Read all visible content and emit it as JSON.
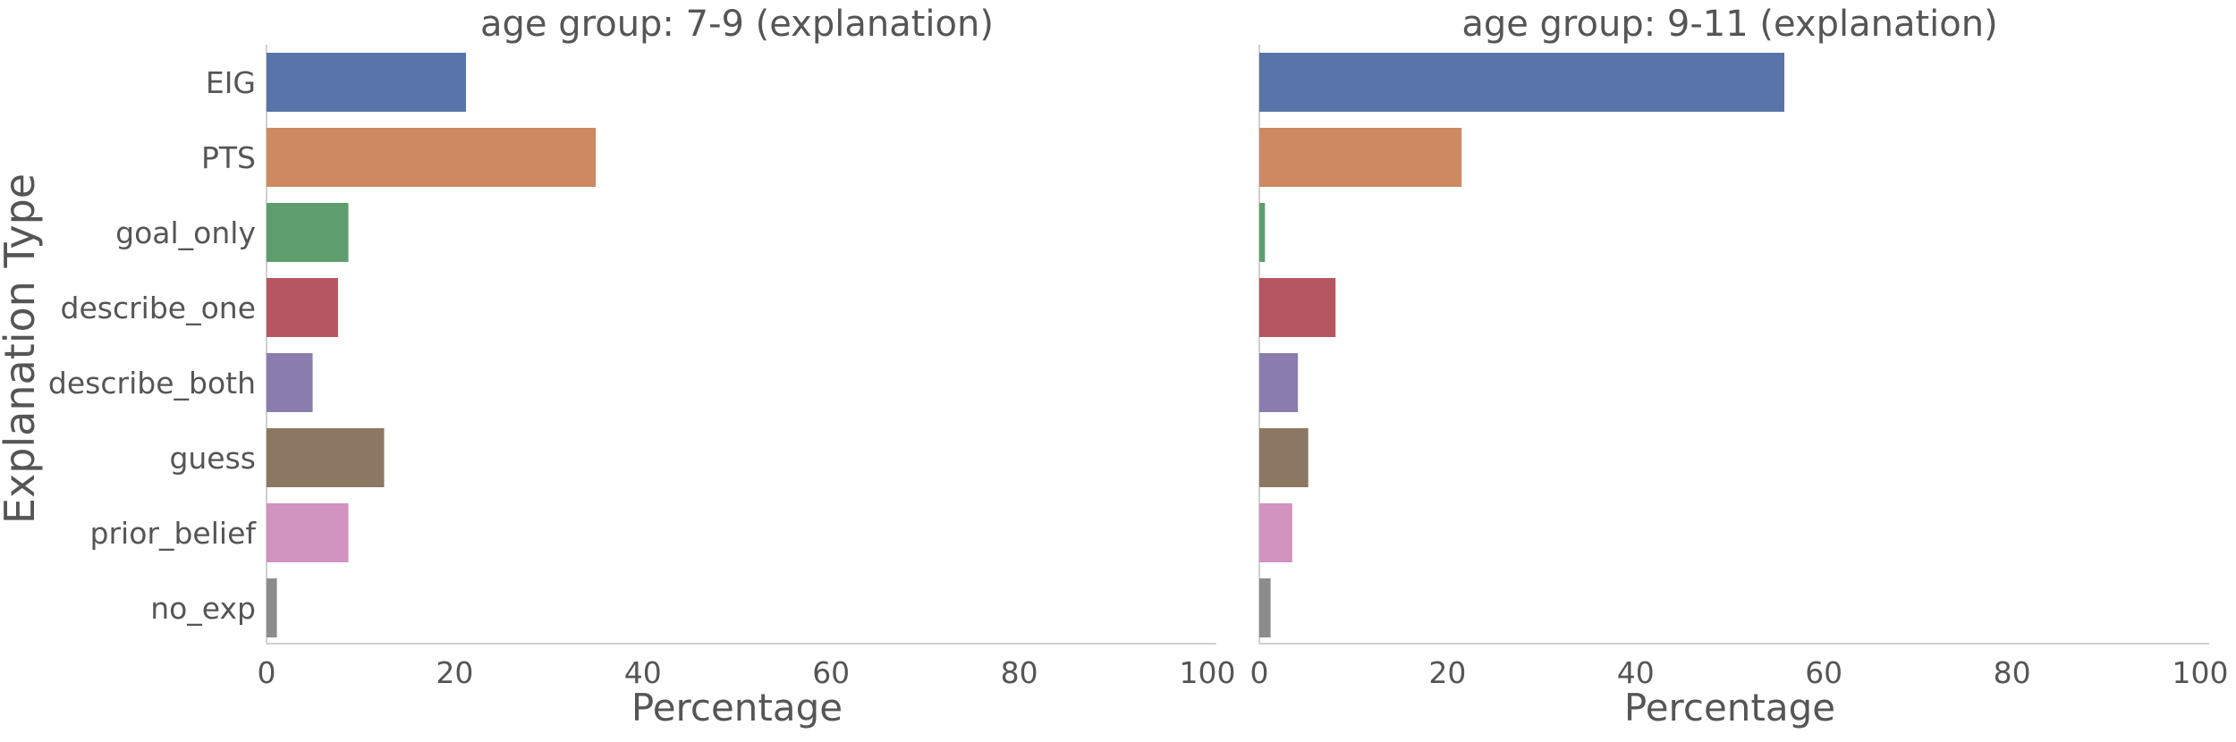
{
  "y_axis_label": "Explanation Type",
  "chart_data": {
    "type": "bar",
    "orientation": "horizontal",
    "categories": [
      "EIG",
      "PTS",
      "goal_only",
      "describe_one",
      "describe_both",
      "guess",
      "prior_belief",
      "no_exp"
    ],
    "colors": [
      "#5874a8",
      "#cd8962",
      "#5e9e6e",
      "#b65661",
      "#8a7dae",
      "#8c7763",
      "#d193c0",
      "#8c8c8c"
    ],
    "xlim": [
      0,
      100
    ],
    "xticks": [
      0,
      20,
      40,
      60,
      80,
      100
    ],
    "grid": false,
    "panels": [
      {
        "title": "age group: 7-9 (explanation)",
        "xlabel": "Percentage",
        "values": [
          21.2,
          35.0,
          8.7,
          7.6,
          4.9,
          12.5,
          8.7,
          1.1
        ]
      },
      {
        "title": "age group: 9-11 (explanation)",
        "xlabel": "Percentage",
        "values": [
          55.8,
          21.5,
          0.6,
          8.1,
          4.1,
          5.2,
          3.5,
          1.2
        ]
      }
    ]
  }
}
